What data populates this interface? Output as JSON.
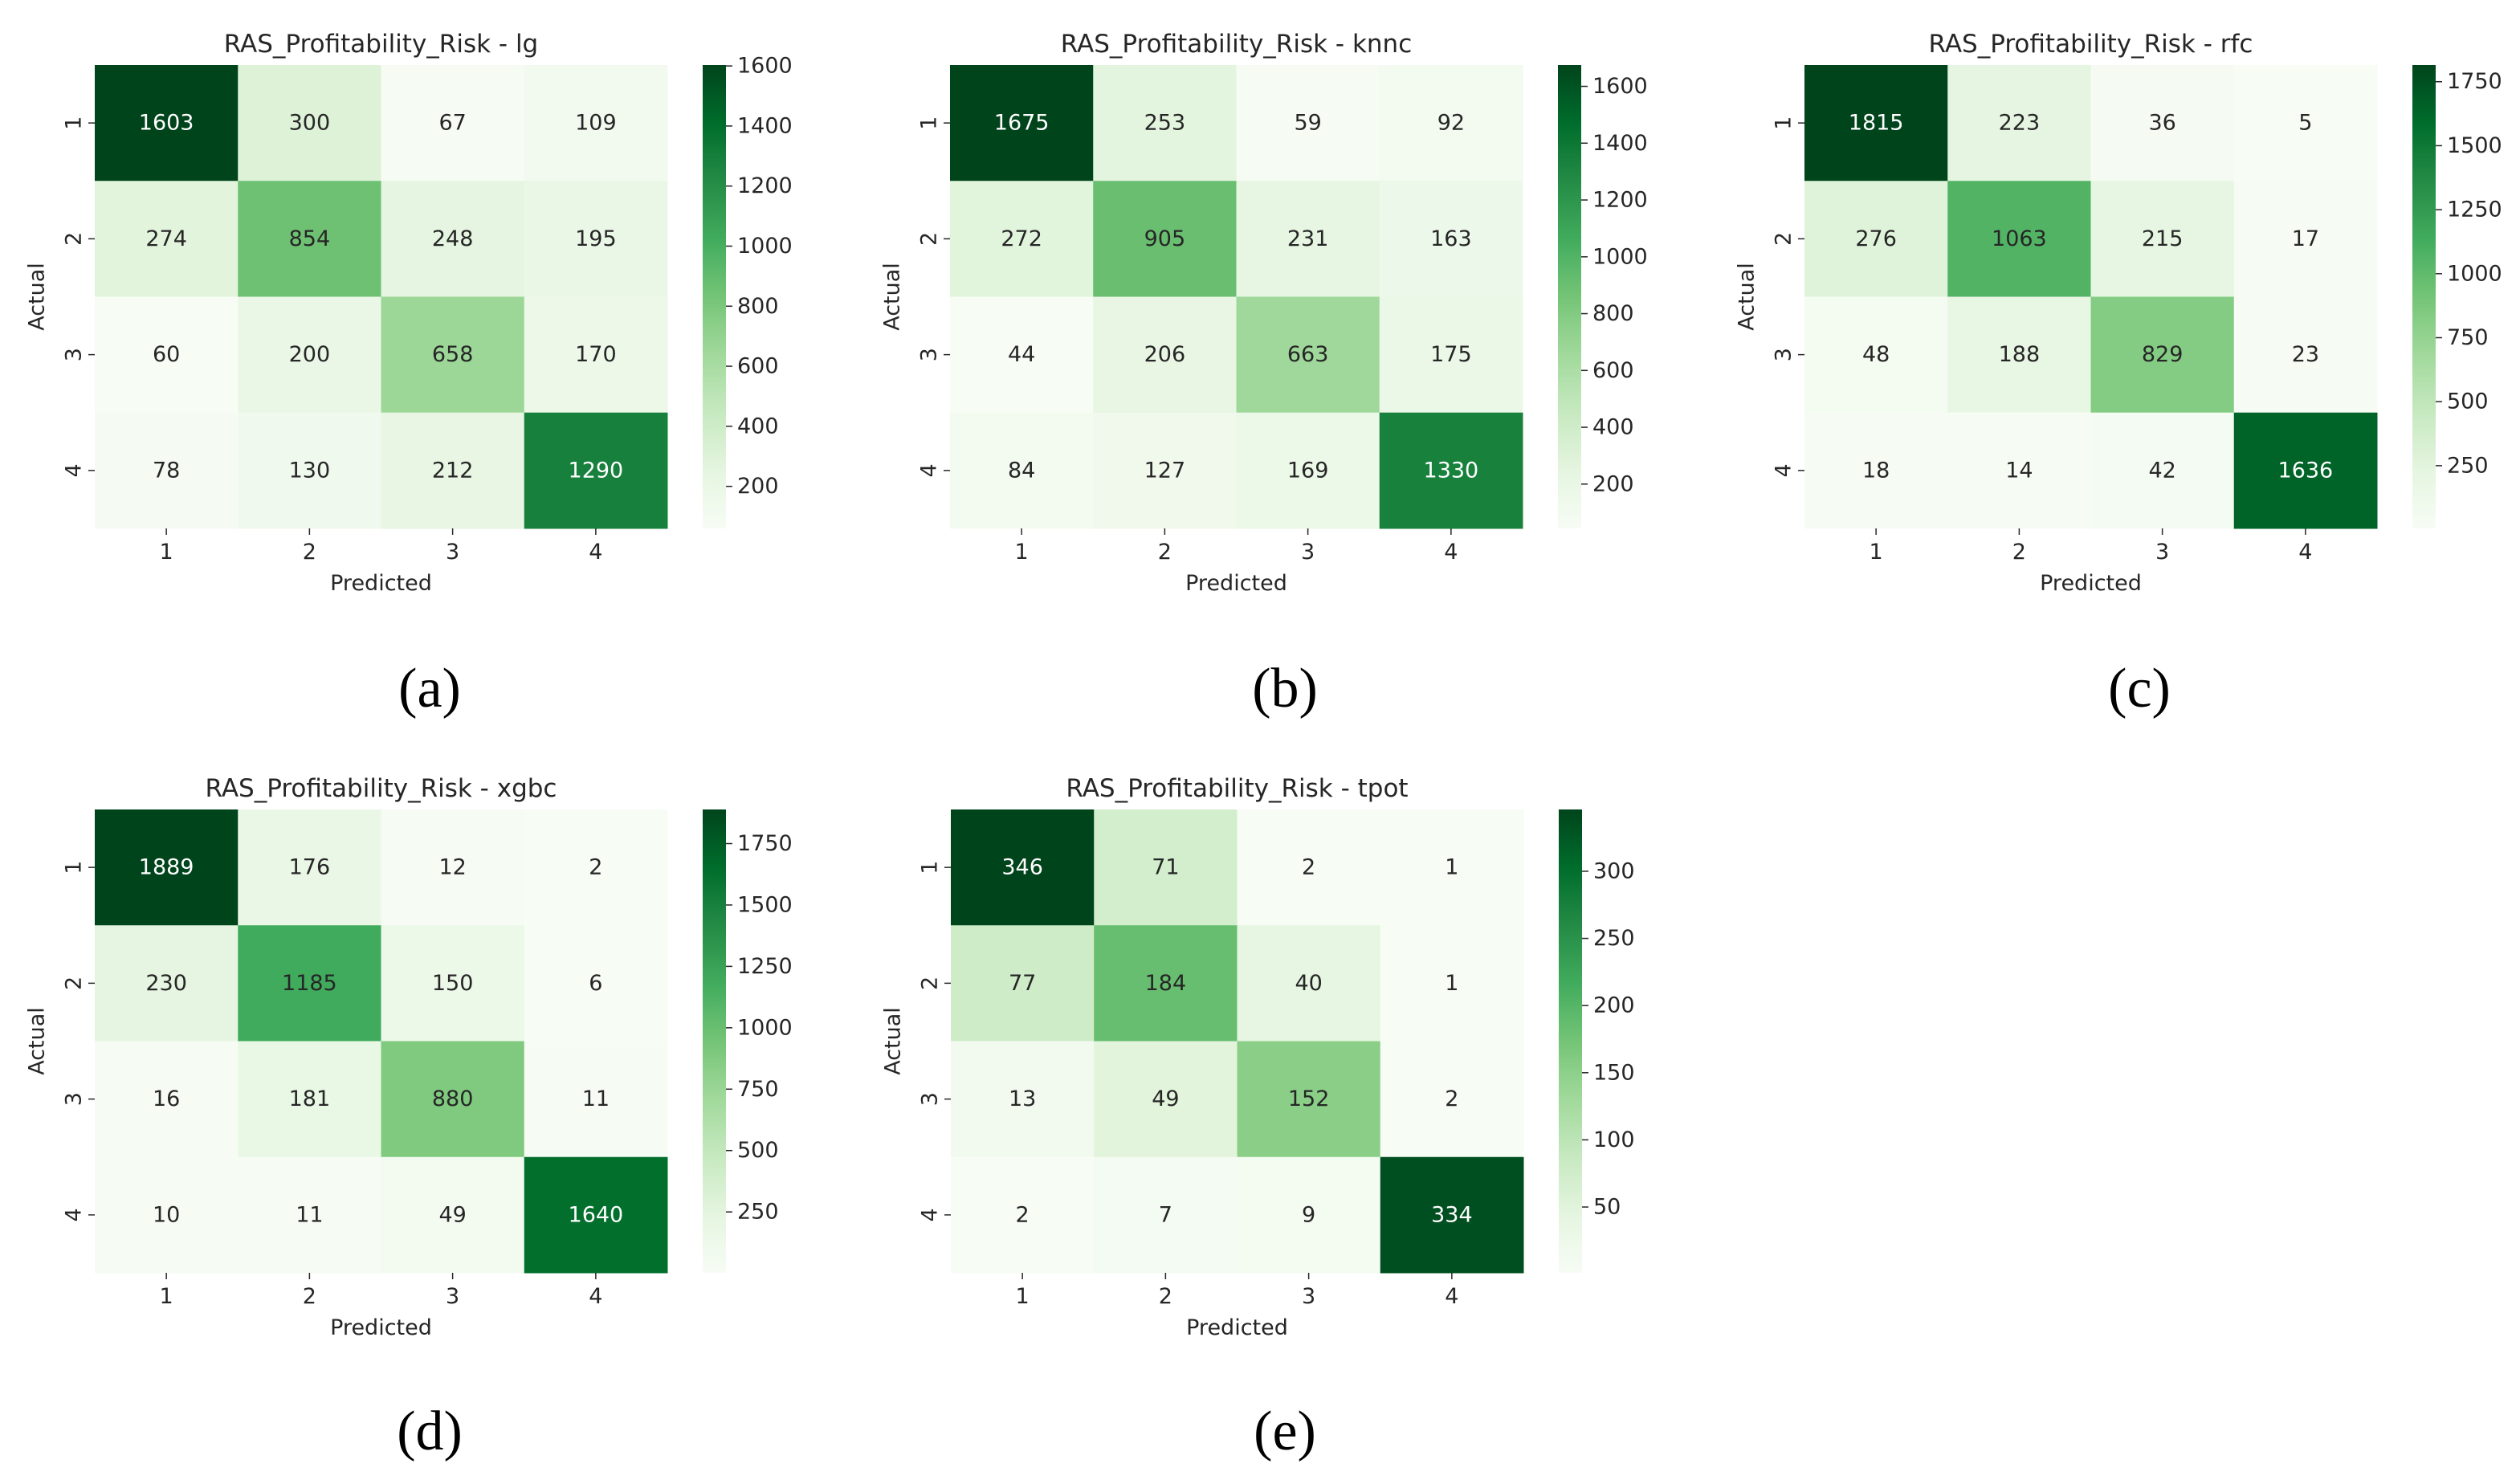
{
  "axis_labels": {
    "x": "Predicted",
    "y": "Actual"
  },
  "colors": {
    "low": "#f7fcf5",
    "mid": "#74c476",
    "high": "#00441b",
    "text_dark": "#262626",
    "text_light": "#ffffff"
  },
  "chart_data": [
    {
      "type": "heatmap",
      "caption": "(a)",
      "title": "RAS_Profitability_Risk - lg",
      "xlabel": "Predicted",
      "ylabel": "Actual",
      "x_categories": [
        "1",
        "2",
        "3",
        "4"
      ],
      "y_categories": [
        "1",
        "2",
        "3",
        "4"
      ],
      "values": [
        [
          1603,
          300,
          67,
          109
        ],
        [
          274,
          854,
          248,
          195
        ],
        [
          60,
          200,
          658,
          170
        ],
        [
          78,
          130,
          212,
          1290
        ]
      ],
      "colorbar": {
        "range": [
          60,
          1603
        ],
        "ticks": [
          200,
          400,
          600,
          800,
          1000,
          1200,
          1400,
          1600
        ]
      }
    },
    {
      "type": "heatmap",
      "caption": "(b)",
      "title": "RAS_Profitability_Risk - knnc",
      "xlabel": "Predicted",
      "ylabel": "Actual",
      "x_categories": [
        "1",
        "2",
        "3",
        "4"
      ],
      "y_categories": [
        "1",
        "2",
        "3",
        "4"
      ],
      "values": [
        [
          1675,
          253,
          59,
          92
        ],
        [
          272,
          905,
          231,
          163
        ],
        [
          44,
          206,
          663,
          175
        ],
        [
          84,
          127,
          169,
          1330
        ]
      ],
      "colorbar": {
        "range": [
          44,
          1675
        ],
        "ticks": [
          200,
          400,
          600,
          800,
          1000,
          1200,
          1400,
          1600
        ]
      }
    },
    {
      "type": "heatmap",
      "caption": "(c)",
      "title": "RAS_Profitability_Risk - rfc",
      "xlabel": "Predicted",
      "ylabel": "Actual",
      "x_categories": [
        "1",
        "2",
        "3",
        "4"
      ],
      "y_categories": [
        "1",
        "2",
        "3",
        "4"
      ],
      "values": [
        [
          1815,
          223,
          36,
          5
        ],
        [
          276,
          1063,
          215,
          17
        ],
        [
          48,
          188,
          829,
          23
        ],
        [
          18,
          14,
          42,
          1636
        ]
      ],
      "colorbar": {
        "range": [
          5,
          1815
        ],
        "ticks": [
          250,
          500,
          750,
          1000,
          1250,
          1500,
          1750
        ]
      }
    },
    {
      "type": "heatmap",
      "caption": "(d)",
      "title": "RAS_Profitability_Risk - xgbc",
      "xlabel": "Predicted",
      "ylabel": "Actual",
      "x_categories": [
        "1",
        "2",
        "3",
        "4"
      ],
      "y_categories": [
        "1",
        "2",
        "3",
        "4"
      ],
      "values": [
        [
          1889,
          176,
          12,
          2
        ],
        [
          230,
          1185,
          150,
          6
        ],
        [
          16,
          181,
          880,
          11
        ],
        [
          10,
          11,
          49,
          1640
        ]
      ],
      "colorbar": {
        "range": [
          2,
          1889
        ],
        "ticks": [
          250,
          500,
          750,
          1000,
          1250,
          1500,
          1750
        ]
      }
    },
    {
      "type": "heatmap",
      "caption": "(e)",
      "title": "RAS_Profitability_Risk - tpot",
      "xlabel": "Predicted",
      "ylabel": "Actual",
      "x_categories": [
        "1",
        "2",
        "3",
        "4"
      ],
      "y_categories": [
        "1",
        "2",
        "3",
        "4"
      ],
      "values": [
        [
          346,
          71,
          2,
          1
        ],
        [
          77,
          184,
          40,
          1
        ],
        [
          13,
          49,
          152,
          2
        ],
        [
          2,
          7,
          9,
          334
        ]
      ],
      "colorbar": {
        "range": [
          1,
          346
        ],
        "ticks": [
          50,
          100,
          150,
          200,
          250,
          300
        ]
      }
    }
  ]
}
